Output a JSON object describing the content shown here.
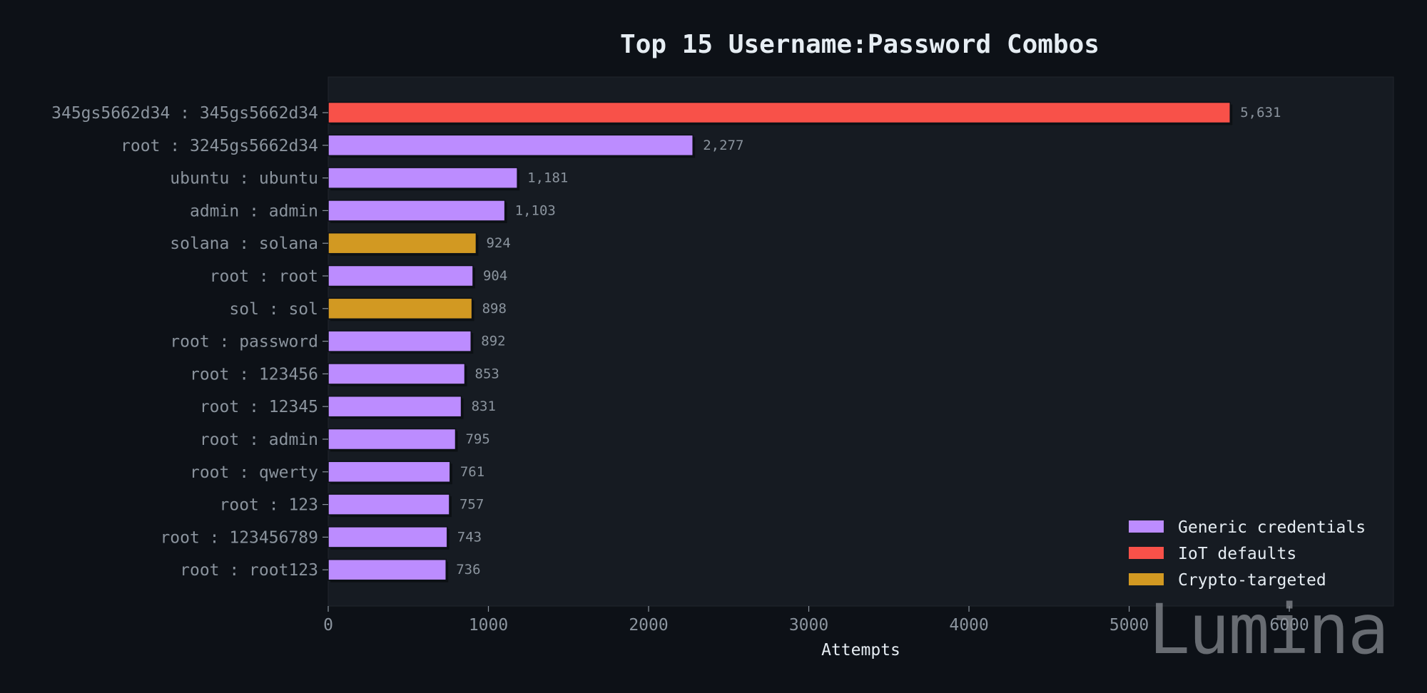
{
  "chart_data": {
    "type": "bar",
    "orientation": "horizontal",
    "title": "Top 15 Username:Password Combos",
    "xlabel": "Attempts",
    "ylabel": "",
    "xlim": [
      0,
      6650
    ],
    "x_ticks": [
      0,
      1000,
      2000,
      3000,
      4000,
      5000,
      6000
    ],
    "grid": false,
    "legend_position": "bottom-right",
    "colors": {
      "background": "#0d1117",
      "plot_background": "#161b22",
      "generic": "#bc8cff",
      "iot": "#f85149",
      "crypto": "#d29922",
      "text": "#e6edf3",
      "muted": "#8b949e"
    },
    "legend": [
      {
        "key": "generic",
        "label": "Generic credentials"
      },
      {
        "key": "iot",
        "label": "IoT defaults"
      },
      {
        "key": "crypto",
        "label": "Crypto-targeted"
      }
    ],
    "bars": [
      {
        "label": "345gs5662d34 : 345gs5662d34",
        "value": 5631,
        "value_label": "5,631",
        "category": "iot"
      },
      {
        "label": "root : 3245gs5662d34",
        "value": 2277,
        "value_label": "2,277",
        "category": "generic"
      },
      {
        "label": "ubuntu : ubuntu",
        "value": 1181,
        "value_label": "1,181",
        "category": "generic"
      },
      {
        "label": "admin : admin",
        "value": 1103,
        "value_label": "1,103",
        "category": "generic"
      },
      {
        "label": "solana : solana",
        "value": 924,
        "value_label": "924",
        "category": "crypto"
      },
      {
        "label": "root : root",
        "value": 904,
        "value_label": "904",
        "category": "generic"
      },
      {
        "label": "sol : sol",
        "value": 898,
        "value_label": "898",
        "category": "crypto"
      },
      {
        "label": "root : password",
        "value": 892,
        "value_label": "892",
        "category": "generic"
      },
      {
        "label": "root : 123456",
        "value": 853,
        "value_label": "853",
        "category": "generic"
      },
      {
        "label": "root : 12345",
        "value": 831,
        "value_label": "831",
        "category": "generic"
      },
      {
        "label": "root : admin",
        "value": 795,
        "value_label": "795",
        "category": "generic"
      },
      {
        "label": "root : qwerty",
        "value": 761,
        "value_label": "761",
        "category": "generic"
      },
      {
        "label": "root : 123",
        "value": 757,
        "value_label": "757",
        "category": "generic"
      },
      {
        "label": "root : 123456789",
        "value": 743,
        "value_label": "743",
        "category": "generic"
      },
      {
        "label": "root : root123",
        "value": 736,
        "value_label": "736",
        "category": "generic"
      }
    ]
  },
  "watermark": "Lumina"
}
